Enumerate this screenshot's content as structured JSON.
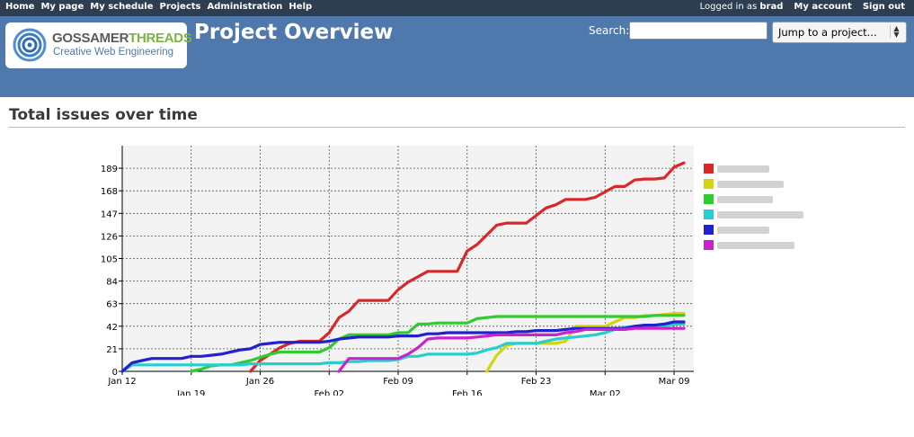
{
  "topnav": {
    "items": [
      "Home",
      "My page",
      "My schedule",
      "Projects",
      "Administration",
      "Help"
    ],
    "logged_in_prefix": "Logged in as",
    "username": "brad",
    "my_account": "My account",
    "sign_out": "Sign out"
  },
  "logo": {
    "brand_part1": "GOSSAMER",
    "brand_part2": "THREADS",
    "tagline": "Creative Web Engineering"
  },
  "header": {
    "title": "Project Overview"
  },
  "search": {
    "label": "Search:",
    "value": ""
  },
  "jump": {
    "selected": "Jump to a project..."
  },
  "section": {
    "title": "Total issues over time"
  },
  "colors": {
    "topbar": "#2c3e50",
    "header": "#4f79ad"
  },
  "chart_data": {
    "type": "line",
    "title": "",
    "xlabel": "",
    "ylabel": "",
    "x_ticks": [
      "Jan 12",
      "Jan 19",
      "Jan 26",
      "Feb 02",
      "Feb 09",
      "Feb 16",
      "Feb 23",
      "Mar 02",
      "Mar 09"
    ],
    "x_tick_days": [
      0,
      7,
      14,
      21,
      28,
      35,
      42,
      49,
      56
    ],
    "xlim": [
      0,
      58
    ],
    "y_ticks": [
      0,
      21,
      42,
      63,
      84,
      105,
      126,
      147,
      168,
      189
    ],
    "ylim": [
      0,
      210
    ],
    "grid": true,
    "legend_position": "right",
    "series": [
      {
        "color": "#d62a2a",
        "points": [
          [
            13,
            0
          ],
          [
            14,
            10
          ],
          [
            15,
            16
          ],
          [
            16,
            22
          ],
          [
            17,
            26
          ],
          [
            18,
            28
          ],
          [
            19,
            28
          ],
          [
            20,
            28
          ],
          [
            21,
            36
          ],
          [
            22,
            50
          ],
          [
            23,
            56
          ],
          [
            24,
            66
          ],
          [
            25,
            66
          ],
          [
            26,
            66
          ],
          [
            27,
            66
          ],
          [
            28,
            76
          ],
          [
            29,
            83
          ],
          [
            30,
            88
          ],
          [
            31,
            93
          ],
          [
            32,
            93
          ],
          [
            33,
            93
          ],
          [
            34,
            93
          ],
          [
            35,
            112
          ],
          [
            36,
            118
          ],
          [
            37,
            127
          ],
          [
            38,
            136
          ],
          [
            39,
            138
          ],
          [
            40,
            138
          ],
          [
            41,
            138
          ],
          [
            42,
            145
          ],
          [
            43,
            152
          ],
          [
            44,
            155
          ],
          [
            45,
            160
          ],
          [
            46,
            160
          ],
          [
            47,
            160
          ],
          [
            48,
            162
          ],
          [
            49,
            167
          ],
          [
            50,
            172
          ],
          [
            51,
            172
          ],
          [
            52,
            178
          ],
          [
            53,
            179
          ],
          [
            54,
            179
          ],
          [
            55,
            180
          ],
          [
            56,
            190
          ],
          [
            57,
            194
          ]
        ]
      },
      {
        "color": "#d4d40f",
        "points": [
          [
            37,
            0
          ],
          [
            38,
            15
          ],
          [
            39,
            24
          ],
          [
            40,
            26
          ],
          [
            41,
            26
          ],
          [
            42,
            26
          ],
          [
            43,
            26
          ],
          [
            44,
            26
          ],
          [
            45,
            28
          ],
          [
            46,
            42
          ],
          [
            47,
            42
          ],
          [
            48,
            42
          ],
          [
            49,
            42
          ],
          [
            50,
            46
          ],
          [
            51,
            50
          ],
          [
            52,
            50
          ],
          [
            53,
            52
          ],
          [
            54,
            52
          ],
          [
            55,
            53
          ],
          [
            56,
            54
          ],
          [
            57,
            54
          ]
        ]
      },
      {
        "color": "#2ecc2e",
        "points": [
          [
            7,
            0
          ],
          [
            8,
            2
          ],
          [
            9,
            5
          ],
          [
            10,
            6
          ],
          [
            11,
            6
          ],
          [
            12,
            8
          ],
          [
            13,
            10
          ],
          [
            14,
            13
          ],
          [
            15,
            16
          ],
          [
            16,
            18
          ],
          [
            17,
            18
          ],
          [
            18,
            18
          ],
          [
            19,
            18
          ],
          [
            20,
            18
          ],
          [
            21,
            22
          ],
          [
            22,
            30
          ],
          [
            23,
            34
          ],
          [
            24,
            34
          ],
          [
            25,
            34
          ],
          [
            26,
            34
          ],
          [
            27,
            34
          ],
          [
            28,
            36
          ],
          [
            29,
            36
          ],
          [
            30,
            44
          ],
          [
            31,
            44
          ],
          [
            32,
            45
          ],
          [
            33,
            45
          ],
          [
            34,
            45
          ],
          [
            35,
            45
          ],
          [
            36,
            49
          ],
          [
            37,
            50
          ],
          [
            38,
            51
          ],
          [
            39,
            51
          ],
          [
            40,
            51
          ],
          [
            41,
            51
          ],
          [
            42,
            51
          ],
          [
            43,
            51
          ],
          [
            44,
            51
          ],
          [
            45,
            51
          ],
          [
            46,
            51
          ],
          [
            47,
            51
          ],
          [
            48,
            51
          ],
          [
            49,
            51
          ],
          [
            50,
            51
          ],
          [
            51,
            51
          ],
          [
            52,
            51
          ],
          [
            53,
            51
          ],
          [
            54,
            52
          ],
          [
            55,
            52
          ],
          [
            56,
            52
          ],
          [
            57,
            52
          ]
        ]
      },
      {
        "color": "#26cfcf",
        "points": [
          [
            0,
            0
          ],
          [
            1,
            6
          ],
          [
            2,
            6
          ],
          [
            3,
            6
          ],
          [
            4,
            6
          ],
          [
            5,
            6
          ],
          [
            6,
            6
          ],
          [
            7,
            6
          ],
          [
            8,
            6
          ],
          [
            9,
            6
          ],
          [
            10,
            6
          ],
          [
            11,
            6
          ],
          [
            12,
            6
          ],
          [
            13,
            7
          ],
          [
            14,
            7
          ],
          [
            15,
            7
          ],
          [
            16,
            7
          ],
          [
            17,
            7
          ],
          [
            18,
            7
          ],
          [
            19,
            7
          ],
          [
            20,
            7
          ],
          [
            21,
            8
          ],
          [
            22,
            8
          ],
          [
            23,
            9
          ],
          [
            24,
            9
          ],
          [
            25,
            10
          ],
          [
            26,
            10
          ],
          [
            27,
            10
          ],
          [
            28,
            11
          ],
          [
            29,
            14
          ],
          [
            30,
            14
          ],
          [
            31,
            16
          ],
          [
            32,
            16
          ],
          [
            33,
            16
          ],
          [
            34,
            16
          ],
          [
            35,
            16
          ],
          [
            36,
            17
          ],
          [
            37,
            20
          ],
          [
            38,
            22
          ],
          [
            39,
            26
          ],
          [
            40,
            26
          ],
          [
            41,
            26
          ],
          [
            42,
            26
          ],
          [
            43,
            28
          ],
          [
            44,
            30
          ],
          [
            45,
            31
          ],
          [
            46,
            32
          ],
          [
            47,
            33
          ],
          [
            48,
            34
          ],
          [
            49,
            36
          ],
          [
            50,
            39
          ],
          [
            51,
            41
          ],
          [
            52,
            42
          ],
          [
            53,
            42
          ],
          [
            54,
            42
          ],
          [
            55,
            42
          ],
          [
            56,
            44
          ],
          [
            57,
            44
          ]
        ]
      },
      {
        "color": "#2222cc",
        "points": [
          [
            0,
            0
          ],
          [
            1,
            8
          ],
          [
            2,
            10
          ],
          [
            3,
            12
          ],
          [
            4,
            12
          ],
          [
            5,
            12
          ],
          [
            6,
            12
          ],
          [
            7,
            14
          ],
          [
            8,
            14
          ],
          [
            9,
            15
          ],
          [
            10,
            16
          ],
          [
            11,
            18
          ],
          [
            12,
            20
          ],
          [
            13,
            21
          ],
          [
            14,
            25
          ],
          [
            15,
            26
          ],
          [
            16,
            27
          ],
          [
            17,
            27
          ],
          [
            18,
            27
          ],
          [
            19,
            27
          ],
          [
            20,
            27
          ],
          [
            21,
            28
          ],
          [
            22,
            30
          ],
          [
            23,
            31
          ],
          [
            24,
            32
          ],
          [
            25,
            32
          ],
          [
            26,
            32
          ],
          [
            27,
            32
          ],
          [
            28,
            33
          ],
          [
            29,
            33
          ],
          [
            30,
            33
          ],
          [
            31,
            35
          ],
          [
            32,
            35
          ],
          [
            33,
            36
          ],
          [
            34,
            36
          ],
          [
            35,
            36
          ],
          [
            36,
            36
          ],
          [
            37,
            36
          ],
          [
            38,
            36
          ],
          [
            39,
            36
          ],
          [
            40,
            37
          ],
          [
            41,
            37
          ],
          [
            42,
            38
          ],
          [
            43,
            38
          ],
          [
            44,
            38
          ],
          [
            45,
            39
          ],
          [
            46,
            40
          ],
          [
            47,
            40
          ],
          [
            48,
            40
          ],
          [
            49,
            40
          ],
          [
            50,
            40
          ],
          [
            51,
            40
          ],
          [
            52,
            42
          ],
          [
            53,
            43
          ],
          [
            54,
            43
          ],
          [
            55,
            44
          ],
          [
            56,
            46
          ],
          [
            57,
            46
          ]
        ]
      },
      {
        "color": "#cc22cc",
        "points": [
          [
            22,
            0
          ],
          [
            23,
            12
          ],
          [
            24,
            12
          ],
          [
            25,
            12
          ],
          [
            26,
            12
          ],
          [
            27,
            12
          ],
          [
            28,
            12
          ],
          [
            29,
            16
          ],
          [
            30,
            22
          ],
          [
            31,
            30
          ],
          [
            32,
            31
          ],
          [
            33,
            31
          ],
          [
            34,
            31
          ],
          [
            35,
            31
          ],
          [
            36,
            32
          ],
          [
            37,
            33
          ],
          [
            38,
            34
          ],
          [
            39,
            34
          ],
          [
            40,
            34
          ],
          [
            41,
            34
          ],
          [
            42,
            34
          ],
          [
            43,
            34
          ],
          [
            44,
            34
          ],
          [
            45,
            36
          ],
          [
            46,
            37
          ],
          [
            47,
            39
          ],
          [
            48,
            39
          ],
          [
            49,
            39
          ],
          [
            50,
            39
          ],
          [
            51,
            39
          ],
          [
            52,
            40
          ],
          [
            53,
            40
          ],
          [
            54,
            40
          ],
          [
            55,
            40
          ],
          [
            56,
            40
          ],
          [
            57,
            40
          ]
        ]
      }
    ]
  }
}
